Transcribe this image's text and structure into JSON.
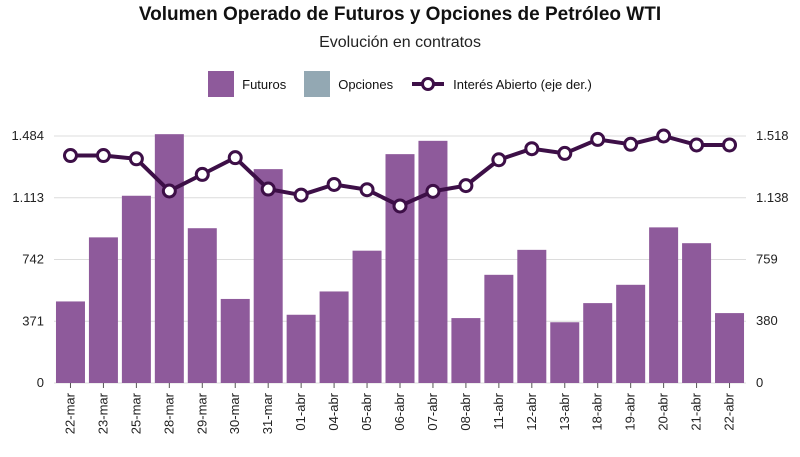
{
  "chart_data": {
    "type": "bar",
    "title": "Volumen Operado de Futuros y Opciones de Petróleo WTI",
    "subtitle": "Evolución en contratos",
    "categories": [
      "22-mar",
      "23-mar",
      "25-mar",
      "28-mar",
      "29-mar",
      "30-mar",
      "31-mar",
      "01-abr",
      "04-abr",
      "05-abr",
      "06-abr",
      "07-abr",
      "08-abr",
      "11-abr",
      "12-abr",
      "13-abr",
      "18-abr",
      "19-abr",
      "20-abr",
      "21-abr",
      "22-abr"
    ],
    "series": [
      {
        "name": "Futuros",
        "kind": "bar",
        "color": "#8E5A9B",
        "values": [
          490,
          875,
          1125,
          1495,
          930,
          505,
          1285,
          410,
          550,
          795,
          1375,
          1455,
          390,
          650,
          800,
          365,
          480,
          590,
          935,
          840,
          420
        ]
      },
      {
        "name": "Opciones",
        "kind": "bar",
        "color": "#93A8B3",
        "values": [
          0,
          0,
          0,
          0,
          0,
          0,
          0,
          0,
          0,
          0,
          0,
          0,
          0,
          0,
          0,
          0,
          0,
          0,
          0,
          0,
          0
        ]
      },
      {
        "name": "Interés Abierto (eje der.)",
        "kind": "line",
        "axis": "right",
        "color": "#3D0F47",
        "values": [
          1398,
          1398,
          1378,
          1180,
          1282,
          1385,
          1192,
          1155,
          1220,
          1188,
          1088,
          1178,
          1213,
          1372,
          1440,
          1411,
          1497,
          1467,
          1518,
          1463,
          1463
        ]
      }
    ],
    "y_left": {
      "ticks": [
        "0",
        "371",
        "742",
        "1.113",
        "1.484"
      ],
      "tick_values": [
        0,
        371,
        742,
        1113,
        1484
      ],
      "ylim": [
        0,
        1484
      ]
    },
    "y_right": {
      "ticks": [
        "0",
        "380",
        "759",
        "1.138",
        "1.518"
      ],
      "tick_values": [
        0,
        380,
        759,
        1138,
        1518
      ],
      "ylim": [
        0,
        1518
      ]
    },
    "grid": true,
    "legend_position": "top"
  }
}
